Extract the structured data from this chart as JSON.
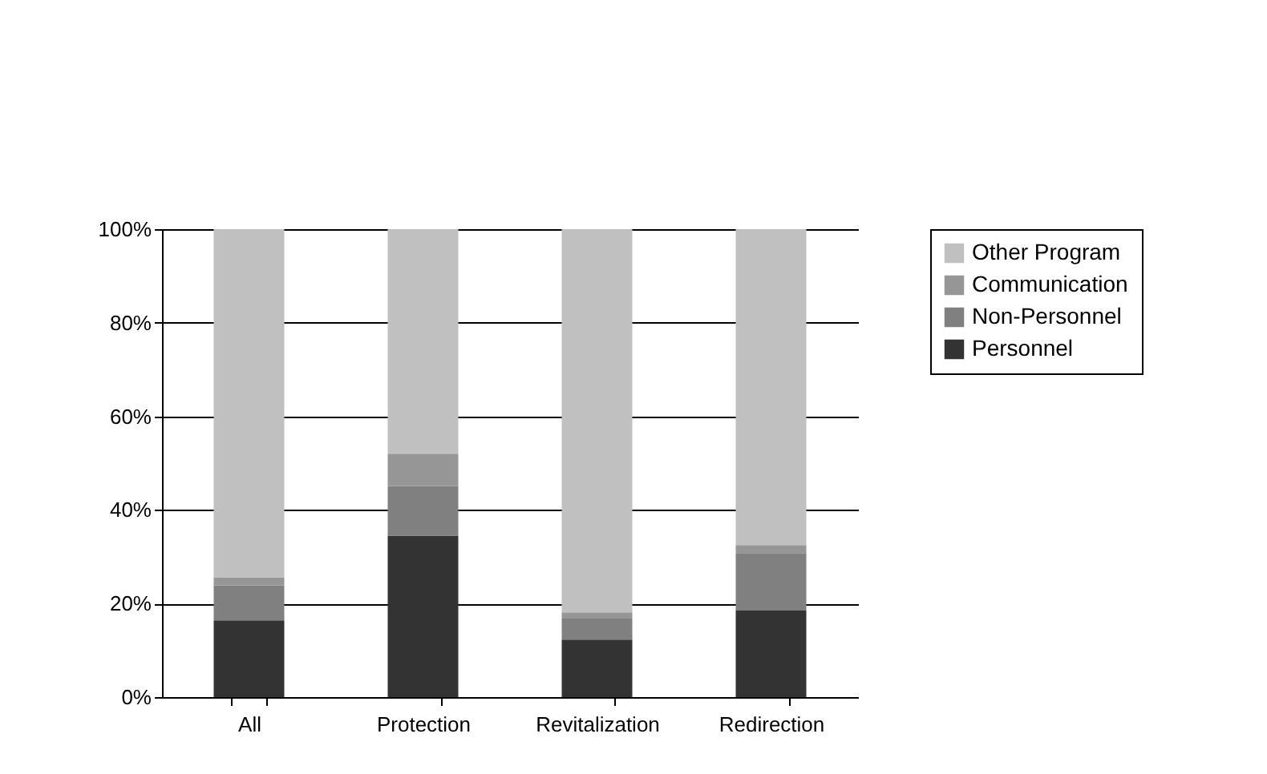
{
  "chart_data": {
    "type": "bar",
    "stacked": true,
    "categories": [
      "All",
      "Protection",
      "Revitalization",
      "Redirection"
    ],
    "series": [
      {
        "name": "Personnel",
        "color": "#333333",
        "values": [
          16.4,
          34.5,
          12.3,
          18.5
        ]
      },
      {
        "name": "Non-Personnel",
        "color": "#808080",
        "values": [
          7.5,
          10.6,
          4.5,
          12.3
        ]
      },
      {
        "name": "Communication",
        "color": "#969696",
        "values": [
          1.7,
          6.9,
          1.3,
          1.7
        ]
      },
      {
        "name": "Other Program",
        "color": "#c0c0c0",
        "values": [
          74.4,
          48.0,
          81.9,
          67.5
        ]
      }
    ],
    "ylim": [
      0,
      100
    ],
    "yticks": [
      {
        "value": 0,
        "label": "0%"
      },
      {
        "value": 20,
        "label": "20%"
      },
      {
        "value": 40,
        "label": "40%"
      },
      {
        "value": 60,
        "label": "60%"
      },
      {
        "value": 80,
        "label": "80%"
      },
      {
        "value": 100,
        "label": "100%"
      }
    ],
    "grid": "y",
    "legend": "right"
  }
}
